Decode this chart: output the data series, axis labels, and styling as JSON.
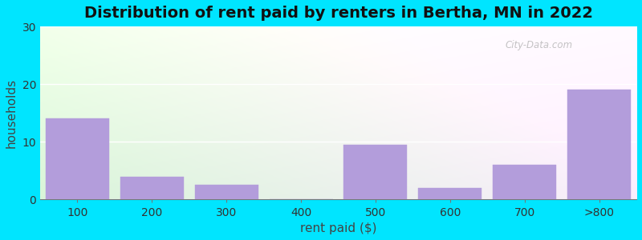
{
  "categories": [
    "100",
    "200",
    "300",
    "400",
    "500",
    "600",
    "700",
    ">800"
  ],
  "values": [
    14,
    4,
    2.5,
    0,
    9.5,
    2,
    6,
    19
  ],
  "bar_color": "#b39ddb",
  "title": "Distribution of rent paid by renters in Bertha, MN in 2022",
  "xlabel": "rent paid ($)",
  "ylabel": "households",
  "ylim": [
    0,
    30
  ],
  "yticks": [
    0,
    10,
    20,
    30
  ],
  "title_fontsize": 14,
  "label_fontsize": 11,
  "tick_fontsize": 10,
  "figure_bg": "#00e5ff",
  "grid_color": "#ffffff",
  "watermark": "City-Data.com"
}
